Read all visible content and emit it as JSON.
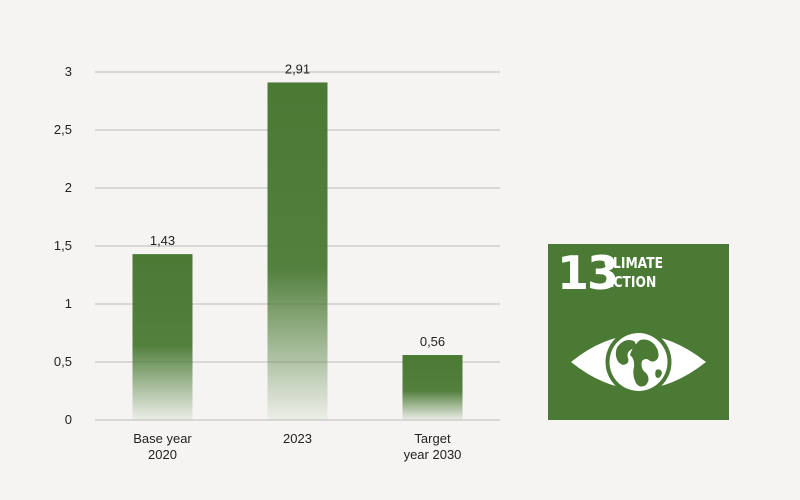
{
  "chart_data": {
    "type": "bar",
    "categories": [
      "Base year\n2020",
      "2023",
      "Target\nyear 2030"
    ],
    "values": [
      1.43,
      2.91,
      0.56
    ],
    "data_labels": [
      "1,43",
      "2,91",
      "0,56"
    ],
    "yticks": [
      0,
      0.5,
      1,
      1.5,
      2,
      2.5,
      3
    ],
    "ytick_labels": [
      "0",
      "0,5",
      "1",
      "1,5",
      "2",
      "2,5",
      "3"
    ],
    "ylim": [
      0,
      3
    ],
    "grid": true,
    "bar_color": "#4a7a34",
    "title": "",
    "xlabel": "",
    "ylabel": ""
  },
  "sdg_badge": {
    "number": "13",
    "title": "CLIMATE\nACTION",
    "color": "#4a7a34",
    "icon": "eye-globe-icon"
  }
}
